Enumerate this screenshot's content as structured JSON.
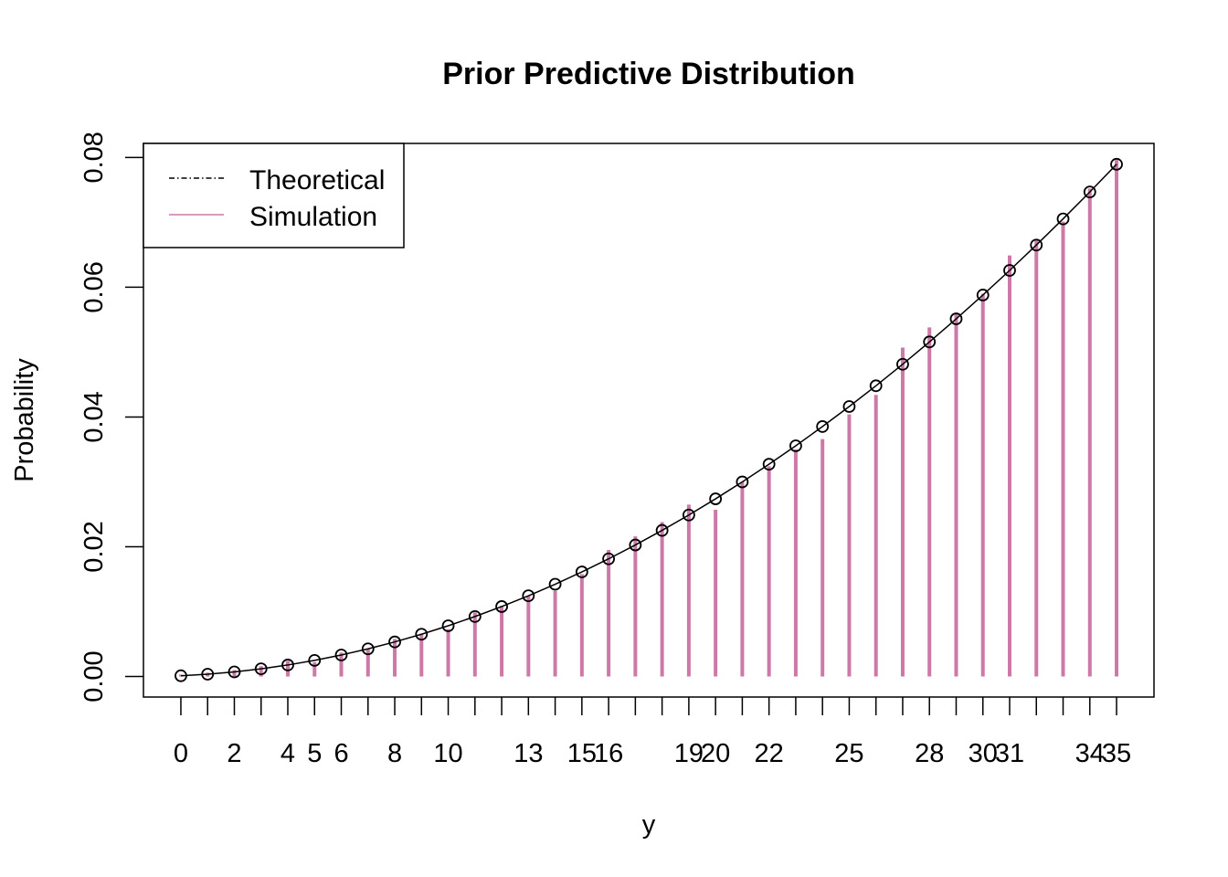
{
  "chart_data": {
    "type": "bar",
    "title": "Prior Predictive Distribution",
    "xlabel": "y",
    "ylabel": "Probability",
    "xlim": [
      0,
      35
    ],
    "ylim": [
      0,
      0.079
    ],
    "x_tick_labels": [
      0,
      2,
      4,
      5,
      6,
      8,
      10,
      13,
      15,
      16,
      19,
      20,
      22,
      25,
      28,
      30,
      31,
      34,
      35
    ],
    "y_ticks": [
      "0.00",
      "0.02",
      "0.04",
      "0.06",
      "0.08"
    ],
    "grid": false,
    "legend": {
      "placement": "top-left",
      "entries": [
        {
          "label": "Theoretical",
          "style": "dot-dash line with circle markers",
          "color": "#000000"
        },
        {
          "label": "Simulation",
          "style": "vertical lines",
          "color": "#CC79A7"
        }
      ]
    },
    "x": [
      0,
      1,
      2,
      3,
      4,
      5,
      6,
      7,
      8,
      9,
      10,
      11,
      12,
      13,
      14,
      15,
      16,
      17,
      18,
      19,
      20,
      21,
      22,
      23,
      24,
      25,
      26,
      27,
      28,
      29,
      30,
      31,
      32,
      33,
      34,
      35
    ],
    "series": [
      {
        "name": "Theoretical",
        "color": "#000000",
        "values": [
          0.000119,
          0.000356,
          0.000711,
          0.001185,
          0.001778,
          0.002489,
          0.003319,
          0.004267,
          0.005334,
          0.00652,
          0.007824,
          0.009246,
          0.010787,
          0.012447,
          0.014225,
          0.016122,
          0.018137,
          0.020271,
          0.022523,
          0.024894,
          0.027383,
          0.029991,
          0.032717,
          0.035562,
          0.038526,
          0.041607,
          0.044808,
          0.048127,
          0.051565,
          0.055121,
          0.058796,
          0.062589,
          0.066501,
          0.070531,
          0.07468,
          0.078947
        ]
      },
      {
        "name": "Simulation",
        "color": "#CC79A7",
        "values": [
          0.0003,
          0.0006,
          0.001,
          0.0016,
          0.0024,
          0.0022,
          0.0037,
          0.0043,
          0.0058,
          0.0066,
          0.0073,
          0.0099,
          0.0109,
          0.0124,
          0.0132,
          0.0158,
          0.0195,
          0.0216,
          0.0238,
          0.0265,
          0.0257,
          0.03,
          0.0324,
          0.035,
          0.0366,
          0.0404,
          0.0434,
          0.0507,
          0.0538,
          0.0559,
          0.059,
          0.0649,
          0.0674,
          0.0701,
          0.0752,
          0.0796
        ]
      }
    ]
  }
}
